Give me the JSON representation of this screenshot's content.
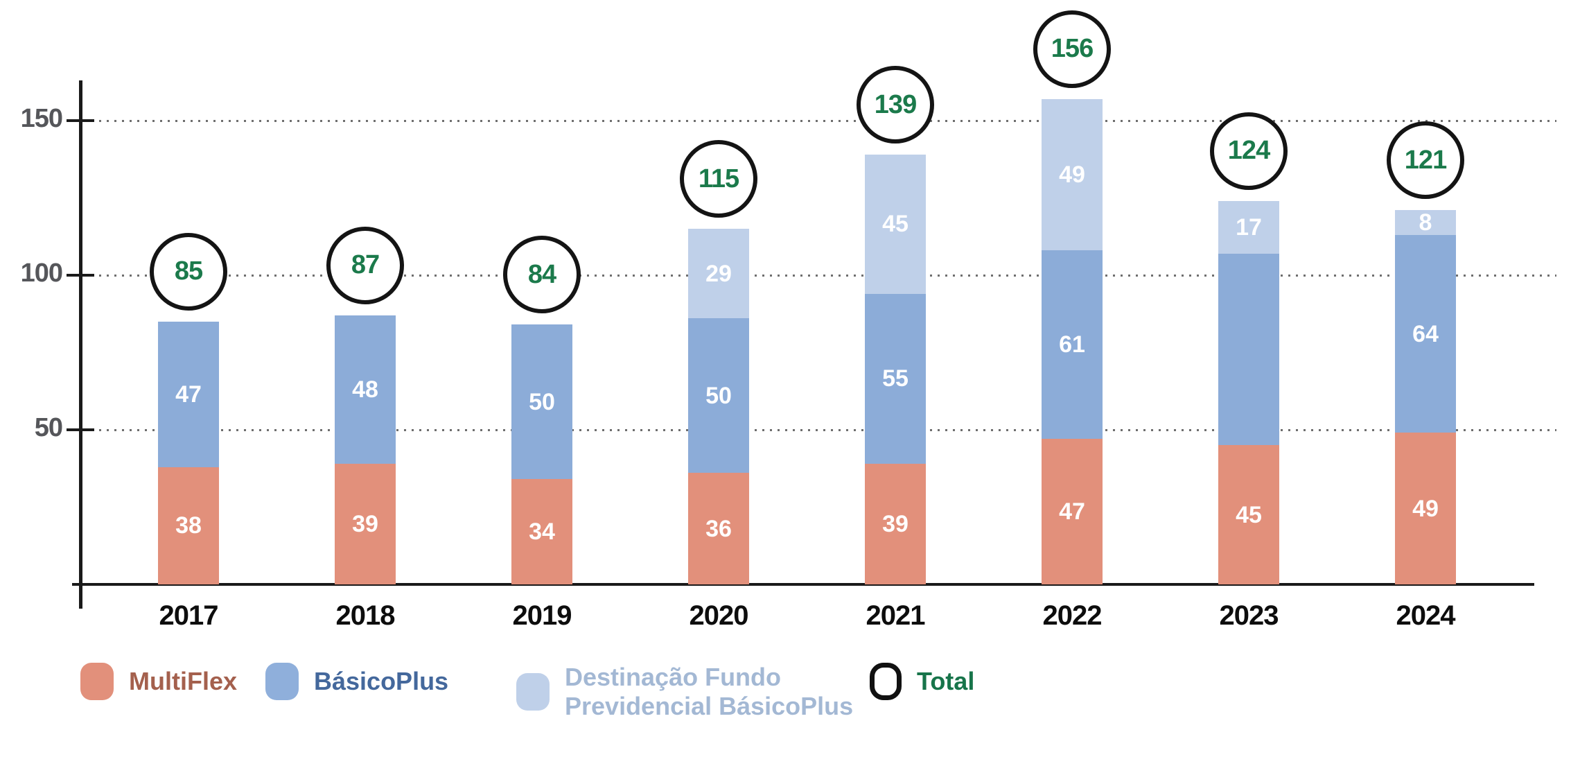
{
  "chart_data": {
    "type": "bar",
    "stacked": true,
    "title": "",
    "xlabel": "",
    "ylabel": "",
    "categories": [
      "2017",
      "2018",
      "2019",
      "2020",
      "2021",
      "2022",
      "2023",
      "2024"
    ],
    "series": [
      {
        "name": "MultiFlex",
        "color": "#E2907B",
        "values": [
          38,
          39,
          34,
          36,
          39,
          47,
          45,
          49
        ],
        "labels": [
          "38",
          "39",
          "34",
          "36",
          "39",
          "47",
          "45",
          "49"
        ]
      },
      {
        "name": "BásicoPlus",
        "color": "#8CACD8",
        "values": [
          47,
          48,
          50,
          50,
          55,
          61,
          62,
          64
        ],
        "labels": [
          "47",
          "48",
          "50",
          "50",
          "55",
          "61",
          "",
          "64"
        ]
      },
      {
        "name": "Destinação Fundo Previdencial BásicoPlus",
        "color": "#BFD0E9",
        "values": [
          0,
          0,
          0,
          29,
          45,
          49,
          17,
          8
        ],
        "labels": [
          "",
          "",
          "",
          "29",
          "45",
          "49",
          "17",
          "8"
        ]
      }
    ],
    "totals": {
      "name": "Total",
      "values": [
        85,
        87,
        84,
        115,
        139,
        156,
        124,
        121
      ],
      "text_color": "#1B7A4B",
      "ring_color": "#141414"
    },
    "y_axis": {
      "ticks": [
        50,
        100,
        150
      ],
      "range": [
        0,
        170
      ],
      "grid": "dotted",
      "tick_label_color": "#55565a"
    },
    "value_label_color": "#FFFFFF",
    "axis_color": "#1a1a1a",
    "legend_position": "bottom"
  },
  "legend": {
    "items": [
      {
        "label": "MultiFlex",
        "swatch": "square",
        "swatch_color": "#E2907B",
        "text_color": "#A4604D"
      },
      {
        "label": "BásicoPlus",
        "swatch": "square",
        "swatch_color": "#8FAFDB",
        "text_color": "#44689C"
      },
      {
        "label": "Destinação Fundo\nPrevidencial BásicoPlus",
        "swatch": "square",
        "swatch_color": "#BFD0E9",
        "text_color": "#A3B8D4"
      },
      {
        "label": "Total",
        "swatch": "ring",
        "swatch_color": "#FFFFFF",
        "text_color": "#17744A"
      }
    ]
  }
}
